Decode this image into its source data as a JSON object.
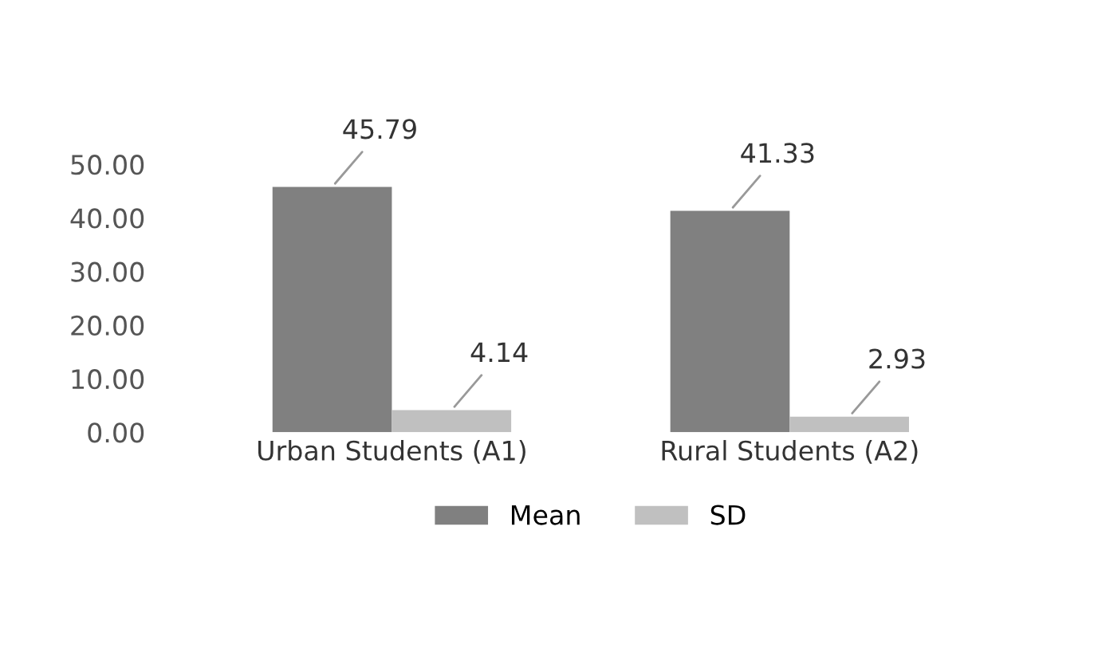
{
  "chart_data": {
    "type": "bar",
    "categories": [
      "Urban Students (A1)",
      "Rural Students (A2)"
    ],
    "series": [
      {
        "name": "Mean",
        "color": "#808080",
        "values": [
          45.79,
          41.33
        ],
        "value_labels": [
          "45.79",
          "41.33"
        ]
      },
      {
        "name": "SD",
        "color": "#c0c0c0",
        "values": [
          4.14,
          2.93
        ],
        "value_labels": [
          "4.14",
          "2.93"
        ]
      }
    ],
    "ylim": [
      0,
      50
    ],
    "yticks": [
      {
        "value": 0,
        "label": "0.00"
      },
      {
        "value": 10,
        "label": "10.00"
      },
      {
        "value": 20,
        "label": "20.00"
      },
      {
        "value": 30,
        "label": "30.00"
      },
      {
        "value": 40,
        "label": "40.00"
      },
      {
        "value": 50,
        "label": "50.00"
      }
    ],
    "grid": false,
    "legend": "bottom"
  }
}
